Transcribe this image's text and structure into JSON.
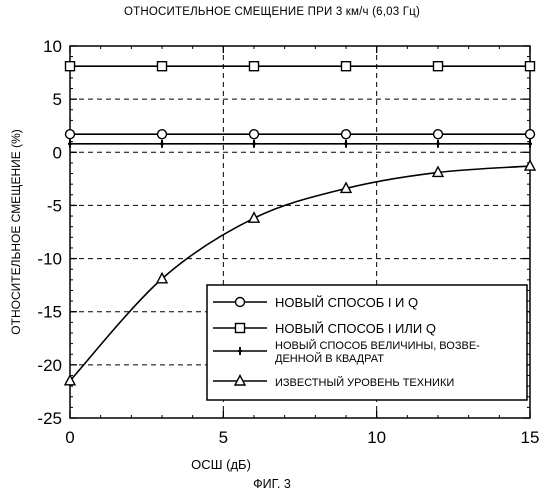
{
  "chart_data": {
    "type": "line",
    "title": "ОТНОСИТЕЛЬНОЕ СМЕЩЕНИЕ ПРИ 3 км/ч (6,03 Гц)",
    "xlabel": "ОСШ (дБ)",
    "ylabel": "ОТНОСИТЕЛЬНОЕ СМЕЩЕНИЕ  (%)",
    "xlim": [
      0,
      15
    ],
    "ylim": [
      -25,
      10
    ],
    "x_ticks": [
      0,
      5,
      10,
      15
    ],
    "y_ticks": [
      10,
      5,
      0,
      -5,
      -10,
      -15,
      -20,
      -25
    ],
    "x_tick_labels": [
      "0",
      "5",
      "10",
      "15"
    ],
    "y_tick_labels": [
      "10",
      "5",
      "0",
      "-5",
      "-10",
      "-15",
      "-20",
      "-25"
    ],
    "grid": true,
    "legend_position": "bottom-right",
    "series": [
      {
        "name": "НОВЫЙ СПОСОБ I И Q",
        "marker": "circle",
        "color": "#000000",
        "x": [
          0,
          3,
          6,
          9,
          12,
          15
        ],
        "y": [
          1.7,
          1.7,
          1.7,
          1.7,
          1.7,
          1.7
        ]
      },
      {
        "name": "НОВЫЙ СПОСОБ I  ИЛИ  Q",
        "marker": "square",
        "color": "#000000",
        "x": [
          0,
          3,
          6,
          9,
          12,
          15
        ],
        "y": [
          8.1,
          8.1,
          8.1,
          8.1,
          8.1,
          8.1
        ]
      },
      {
        "name": "НОВЫЙ СПОСОБ ВЕЛИЧИНЫ, ВОЗВЕ-ДЕННОЙ В КВАДРАТ",
        "name_lines": [
          "НОВЫЙ СПОСОБ ВЕЛИЧИНЫ, ВОЗВЕ-",
          "ДЕННОЙ В КВАДРАТ"
        ],
        "marker": "plus",
        "color": "#000000",
        "x": [
          0,
          3,
          6,
          9,
          12,
          15
        ],
        "y": [
          0.8,
          0.8,
          0.8,
          0.8,
          0.8,
          0.8
        ]
      },
      {
        "name": "ИЗВЕСТНЫЙ УРОВЕНЬ ТЕХНИКИ",
        "marker": "triangle",
        "color": "#000000",
        "x": [
          0,
          3,
          6,
          9,
          12,
          15
        ],
        "y": [
          -21.5,
          -11.9,
          -6.2,
          -3.4,
          -1.9,
          -1.3
        ]
      }
    ]
  },
  "figure_caption": "ФИГ. 3"
}
